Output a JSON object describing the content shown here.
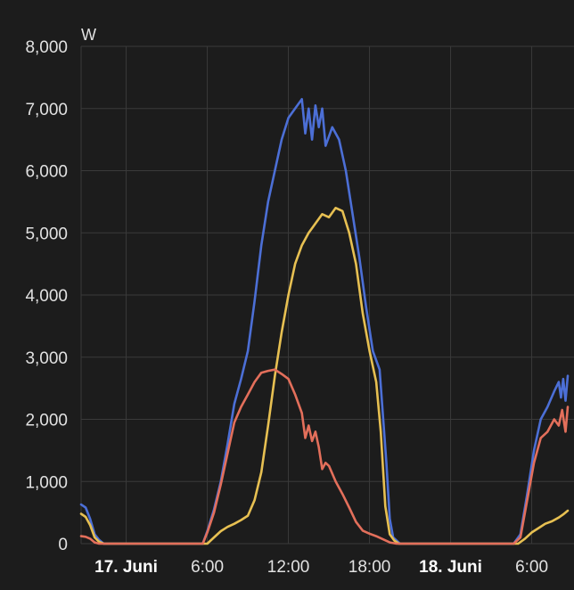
{
  "chart_data": {
    "type": "line",
    "unit": "W",
    "ylim": [
      0,
      8000
    ],
    "y_ticks": [
      {
        "value": 0,
        "label": "0"
      },
      {
        "value": 1000,
        "label": "1,000"
      },
      {
        "value": 2000,
        "label": "2,000"
      },
      {
        "value": 3000,
        "label": "3,000"
      },
      {
        "value": 4000,
        "label": "4,000"
      },
      {
        "value": 5000,
        "label": "5,000"
      },
      {
        "value": 6000,
        "label": "6,000"
      },
      {
        "value": 7000,
        "label": "7,000"
      },
      {
        "value": 8000,
        "label": "8,000"
      }
    ],
    "x_axis": "time",
    "xlim": [
      "2024-06-16T20:40",
      "2024-06-18T08:40"
    ],
    "x_ticks": [
      {
        "value": "2024-06-17T00:00",
        "label": "17. Juni",
        "bold": true
      },
      {
        "value": "2024-06-17T06:00",
        "label": "6:00",
        "bold": false
      },
      {
        "value": "2024-06-17T12:00",
        "label": "12:00",
        "bold": false
      },
      {
        "value": "2024-06-17T18:00",
        "label": "18:00",
        "bold": false
      },
      {
        "value": "2024-06-18T00:00",
        "label": "18. Juni",
        "bold": true
      },
      {
        "value": "2024-06-18T06:00",
        "label": "6:00",
        "bold": false
      }
    ],
    "grid": true,
    "series": [
      {
        "color": "#4c6fd6",
        "points": [
          [
            "2024-06-16T20:40",
            630
          ],
          [
            "2024-06-16T21:00",
            580
          ],
          [
            "2024-06-16T21:20",
            400
          ],
          [
            "2024-06-16T21:40",
            150
          ],
          [
            "2024-06-16T22:00",
            60
          ],
          [
            "2024-06-16T22:20",
            0
          ],
          [
            "2024-06-17T05:40",
            0
          ],
          [
            "2024-06-17T06:00",
            200
          ],
          [
            "2024-06-17T06:30",
            550
          ],
          [
            "2024-06-17T07:00",
            1000
          ],
          [
            "2024-06-17T07:30",
            1600
          ],
          [
            "2024-06-17T08:00",
            2250
          ],
          [
            "2024-06-17T08:30",
            2650
          ],
          [
            "2024-06-17T09:00",
            3100
          ],
          [
            "2024-06-17T09:30",
            3900
          ],
          [
            "2024-06-17T10:00",
            4800
          ],
          [
            "2024-06-17T10:30",
            5500
          ],
          [
            "2024-06-17T11:00",
            6000
          ],
          [
            "2024-06-17T11:30",
            6500
          ],
          [
            "2024-06-17T12:00",
            6850
          ],
          [
            "2024-06-17T12:30",
            7000
          ],
          [
            "2024-06-17T13:00",
            7150
          ],
          [
            "2024-06-17T13:15",
            6600
          ],
          [
            "2024-06-17T13:30",
            7000
          ],
          [
            "2024-06-17T13:45",
            6500
          ],
          [
            "2024-06-17T14:00",
            7050
          ],
          [
            "2024-06-17T14:15",
            6700
          ],
          [
            "2024-06-17T14:30",
            7000
          ],
          [
            "2024-06-17T14:45",
            6400
          ],
          [
            "2024-06-17T15:15",
            6700
          ],
          [
            "2024-06-17T15:45",
            6500
          ],
          [
            "2024-06-17T16:15",
            6000
          ],
          [
            "2024-06-17T16:45",
            5300
          ],
          [
            "2024-06-17T17:15",
            4600
          ],
          [
            "2024-06-17T17:45",
            3800
          ],
          [
            "2024-06-17T18:15",
            3100
          ],
          [
            "2024-06-17T18:45",
            2800
          ],
          [
            "2024-06-17T19:15",
            1300
          ],
          [
            "2024-06-17T19:30",
            400
          ],
          [
            "2024-06-17T19:45",
            100
          ],
          [
            "2024-06-17T20:15",
            0
          ],
          [
            "2024-06-18T04:40",
            0
          ],
          [
            "2024-06-18T05:10",
            150
          ],
          [
            "2024-06-18T05:40",
            800
          ],
          [
            "2024-06-18T06:10",
            1500
          ],
          [
            "2024-06-18T06:40",
            2000
          ],
          [
            "2024-06-18T07:10",
            2200
          ],
          [
            "2024-06-18T07:40",
            2450
          ],
          [
            "2024-06-18T08:00",
            2600
          ],
          [
            "2024-06-18T08:10",
            2350
          ],
          [
            "2024-06-18T08:20",
            2650
          ],
          [
            "2024-06-18T08:30",
            2300
          ],
          [
            "2024-06-18T08:40",
            2700
          ]
        ]
      },
      {
        "color": "#e7c052",
        "points": [
          [
            "2024-06-16T20:40",
            480
          ],
          [
            "2024-06-16T21:00",
            430
          ],
          [
            "2024-06-16T21:20",
            300
          ],
          [
            "2024-06-16T21:40",
            100
          ],
          [
            "2024-06-16T22:00",
            30
          ],
          [
            "2024-06-16T22:20",
            0
          ],
          [
            "2024-06-17T06:00",
            0
          ],
          [
            "2024-06-17T06:30",
            100
          ],
          [
            "2024-06-17T07:00",
            200
          ],
          [
            "2024-06-17T07:30",
            270
          ],
          [
            "2024-06-17T08:00",
            320
          ],
          [
            "2024-06-17T08:30",
            380
          ],
          [
            "2024-06-17T09:00",
            450
          ],
          [
            "2024-06-17T09:30",
            700
          ],
          [
            "2024-06-17T10:00",
            1150
          ],
          [
            "2024-06-17T10:30",
            1900
          ],
          [
            "2024-06-17T11:00",
            2700
          ],
          [
            "2024-06-17T11:30",
            3400
          ],
          [
            "2024-06-17T12:00",
            4000
          ],
          [
            "2024-06-17T12:30",
            4500
          ],
          [
            "2024-06-17T13:00",
            4800
          ],
          [
            "2024-06-17T13:30",
            5000
          ],
          [
            "2024-06-17T14:00",
            5150
          ],
          [
            "2024-06-17T14:30",
            5300
          ],
          [
            "2024-06-17T15:00",
            5250
          ],
          [
            "2024-06-17T15:30",
            5400
          ],
          [
            "2024-06-17T16:00",
            5350
          ],
          [
            "2024-06-17T16:30",
            5000
          ],
          [
            "2024-06-17T17:00",
            4500
          ],
          [
            "2024-06-17T17:30",
            3700
          ],
          [
            "2024-06-17T18:00",
            3100
          ],
          [
            "2024-06-17T18:30",
            2600
          ],
          [
            "2024-06-17T18:50",
            1800
          ],
          [
            "2024-06-17T19:10",
            600
          ],
          [
            "2024-06-17T19:30",
            150
          ],
          [
            "2024-06-17T19:50",
            50
          ],
          [
            "2024-06-17T20:10",
            0
          ],
          [
            "2024-06-18T05:00",
            0
          ],
          [
            "2024-06-18T05:30",
            80
          ],
          [
            "2024-06-18T06:00",
            180
          ],
          [
            "2024-06-18T06:30",
            250
          ],
          [
            "2024-06-18T07:00",
            320
          ],
          [
            "2024-06-18T07:30",
            360
          ],
          [
            "2024-06-18T08:00",
            420
          ],
          [
            "2024-06-18T08:20",
            470
          ],
          [
            "2024-06-18T08:40",
            530
          ]
        ]
      },
      {
        "color": "#e36f5b",
        "points": [
          [
            "2024-06-16T20:40",
            120
          ],
          [
            "2024-06-16T21:00",
            110
          ],
          [
            "2024-06-16T21:20",
            80
          ],
          [
            "2024-06-16T21:40",
            20
          ],
          [
            "2024-06-16T22:00",
            0
          ],
          [
            "2024-06-17T05:40",
            0
          ],
          [
            "2024-06-17T06:00",
            180
          ],
          [
            "2024-06-17T06:30",
            500
          ],
          [
            "2024-06-17T07:00",
            950
          ],
          [
            "2024-06-17T07:30",
            1450
          ],
          [
            "2024-06-17T08:00",
            1950
          ],
          [
            "2024-06-17T08:30",
            2200
          ],
          [
            "2024-06-17T09:00",
            2400
          ],
          [
            "2024-06-17T09:30",
            2600
          ],
          [
            "2024-06-17T10:00",
            2750
          ],
          [
            "2024-06-17T10:30",
            2780
          ],
          [
            "2024-06-17T11:00",
            2800
          ],
          [
            "2024-06-17T11:30",
            2730
          ],
          [
            "2024-06-17T12:00",
            2650
          ],
          [
            "2024-06-17T12:30",
            2400
          ],
          [
            "2024-06-17T13:00",
            2100
          ],
          [
            "2024-06-17T13:15",
            1700
          ],
          [
            "2024-06-17T13:30",
            1900
          ],
          [
            "2024-06-17T13:45",
            1650
          ],
          [
            "2024-06-17T14:00",
            1800
          ],
          [
            "2024-06-17T14:15",
            1550
          ],
          [
            "2024-06-17T14:30",
            1200
          ],
          [
            "2024-06-17T14:45",
            1300
          ],
          [
            "2024-06-17T15:00",
            1250
          ],
          [
            "2024-06-17T15:30",
            1000
          ],
          [
            "2024-06-17T16:00",
            800
          ],
          [
            "2024-06-17T16:30",
            580
          ],
          [
            "2024-06-17T17:00",
            350
          ],
          [
            "2024-06-17T17:30",
            210
          ],
          [
            "2024-06-17T18:00",
            160
          ],
          [
            "2024-06-17T18:30",
            120
          ],
          [
            "2024-06-17T19:00",
            70
          ],
          [
            "2024-06-17T19:30",
            20
          ],
          [
            "2024-06-17T20:00",
            0
          ],
          [
            "2024-06-18T04:40",
            0
          ],
          [
            "2024-06-18T05:10",
            100
          ],
          [
            "2024-06-18T05:40",
            700
          ],
          [
            "2024-06-18T06:10",
            1300
          ],
          [
            "2024-06-18T06:40",
            1700
          ],
          [
            "2024-06-18T07:10",
            1800
          ],
          [
            "2024-06-18T07:40",
            2000
          ],
          [
            "2024-06-18T08:00",
            1900
          ],
          [
            "2024-06-18T08:15",
            2150
          ],
          [
            "2024-06-18T08:30",
            1800
          ],
          [
            "2024-06-18T08:40",
            2200
          ]
        ]
      }
    ]
  }
}
